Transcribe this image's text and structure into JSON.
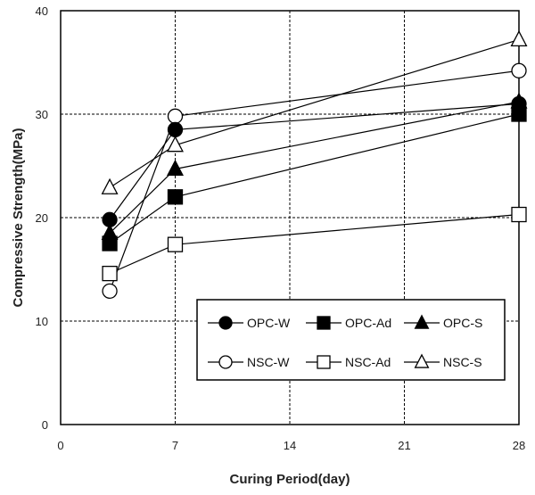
{
  "chart_data": {
    "type": "line",
    "title": "",
    "xlabel": "Curing Period(day)",
    "ylabel": "Compressive Strength(MPa)",
    "xlim": [
      0,
      28
    ],
    "ylim": [
      0,
      40
    ],
    "xticks": [
      0,
      7,
      14,
      21,
      28
    ],
    "yticks": [
      0,
      10,
      20,
      30,
      40
    ],
    "grid": "dashed",
    "legend_position": "lower-right",
    "x": [
      3,
      7,
      28
    ],
    "series": [
      {
        "name": "OPC-W",
        "values": [
          19.8,
          28.5,
          31.0
        ],
        "marker": "circle",
        "fill": "filled"
      },
      {
        "name": "OPC-Ad",
        "values": [
          17.5,
          22.0,
          30.0
        ],
        "marker": "square",
        "fill": "filled"
      },
      {
        "name": "OPC-S",
        "values": [
          18.5,
          24.7,
          31.2
        ],
        "marker": "triangle",
        "fill": "filled"
      },
      {
        "name": "NSC-W",
        "values": [
          12.9,
          29.8,
          34.2
        ],
        "marker": "circle",
        "fill": "open"
      },
      {
        "name": "NSC-Ad",
        "values": [
          14.6,
          17.4,
          20.3
        ],
        "marker": "square",
        "fill": "open"
      },
      {
        "name": "NSC-S",
        "values": [
          22.9,
          27.0,
          37.2
        ],
        "marker": "triangle",
        "fill": "open"
      }
    ]
  }
}
